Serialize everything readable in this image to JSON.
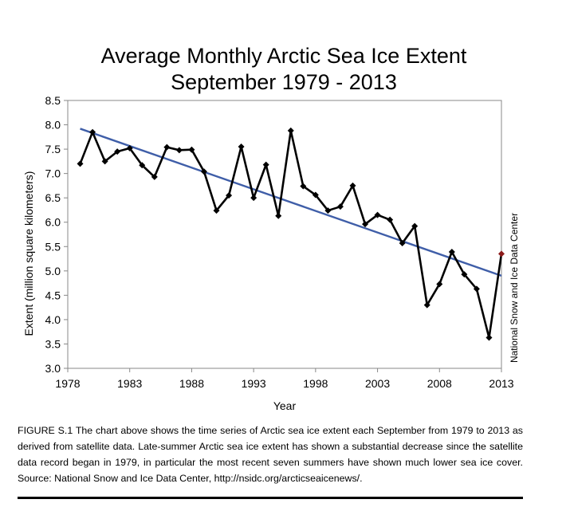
{
  "chart_data": {
    "type": "line",
    "title_line1": "Average Monthly Arctic Sea Ice Extent",
    "title_line2": "September 1979 - 2013",
    "xlabel": "Year",
    "ylabel": "Extent (million square kilometers)",
    "xlim": [
      1978,
      2013
    ],
    "ylim": [
      3.0,
      8.5
    ],
    "xticks": [
      "1978",
      "1983",
      "1988",
      "1993",
      "1998",
      "2003",
      "2008",
      "2013"
    ],
    "yticks": [
      "3.0",
      "3.5",
      "4.0",
      "4.5",
      "5.0",
      "5.5",
      "6.0",
      "6.5",
      "7.0",
      "7.5",
      "8.0",
      "8.5"
    ],
    "grid": false,
    "legend": "none",
    "series": [
      {
        "x": [
          1979,
          1980,
          1981,
          1982,
          1983,
          1984,
          1985,
          1986,
          1987,
          1988,
          1989,
          1990,
          1991,
          1992,
          1993,
          1994,
          1995,
          1996,
          1997,
          1998,
          1999,
          2000,
          2001,
          2002,
          2003,
          2004,
          2005,
          2006,
          2007,
          2008,
          2009,
          2010,
          2011,
          2012,
          2013
        ],
        "y": [
          7.2,
          7.85,
          7.25,
          7.45,
          7.52,
          7.17,
          6.93,
          7.54,
          7.48,
          7.49,
          7.04,
          6.24,
          6.55,
          7.55,
          6.5,
          7.18,
          6.13,
          7.88,
          6.74,
          6.56,
          6.24,
          6.32,
          6.75,
          5.96,
          6.15,
          6.05,
          5.57,
          5.92,
          4.3,
          4.73,
          5.39,
          4.93,
          4.63,
          3.63,
          5.35
        ],
        "color": "#000000",
        "highlight_last_color": "#8b1a1a"
      }
    ],
    "trend_line": {
      "x": [
        1979,
        2013
      ],
      "y": [
        7.92,
        4.9
      ],
      "color": "#3f5ea8"
    },
    "source": "National Snow and Ice Data Center"
  },
  "caption": "FIGURE S.1 The chart above shows the time series of Arctic sea ice extent each September from 1979 to 2013 as derived from satellite data. Late-summer Arctic sea ice extent has shown a substantial decrease since the satellite data record began in 1979, in particular the most recent seven summers have shown much lower sea ice cover. Source: National Snow and Ice Data Center, http://nsidc.org/arcticseaicenews/."
}
